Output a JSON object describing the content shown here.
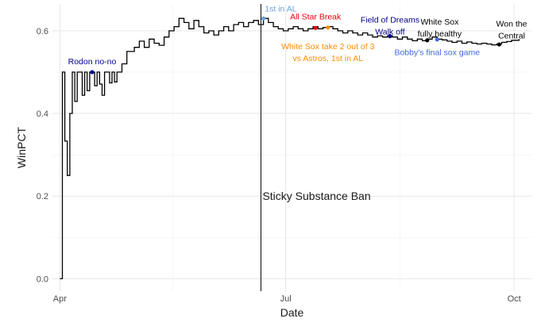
{
  "chart_data": {
    "type": "line",
    "xlabel": "Date",
    "ylabel": "WinPCT",
    "x_ticks": [
      "Apr",
      "Jul",
      "Oct"
    ],
    "y_ticks": [
      "0.0",
      "0.2",
      "0.4",
      "0.6"
    ],
    "xlim": [
      "2021-03-29",
      "2021-10-08"
    ],
    "ylim": [
      -0.03,
      0.665
    ],
    "grid": true,
    "series": [
      {
        "color": "#000000",
        "points": [
          [
            "2021-04-01",
            0.0
          ],
          [
            "2021-04-02",
            0.5
          ],
          [
            "2021-04-03",
            0.333
          ],
          [
            "2021-04-04",
            0.25
          ],
          [
            "2021-04-05",
            0.4
          ],
          [
            "2021-04-06",
            0.5
          ],
          [
            "2021-04-07",
            0.429
          ],
          [
            "2021-04-08",
            0.5
          ],
          [
            "2021-04-09",
            0.5
          ],
          [
            "2021-04-10",
            0.444
          ],
          [
            "2021-04-11",
            0.5
          ],
          [
            "2021-04-12",
            0.455
          ],
          [
            "2021-04-13",
            0.5
          ],
          [
            "2021-04-14",
            0.5
          ],
          [
            "2021-04-15",
            0.467
          ],
          [
            "2021-04-16",
            0.5
          ],
          [
            "2021-04-17",
            0.471
          ],
          [
            "2021-04-18",
            0.444
          ],
          [
            "2021-04-19",
            0.5
          ],
          [
            "2021-04-21",
            0.474
          ],
          [
            "2021-04-22",
            0.5
          ],
          [
            "2021-04-23",
            0.476
          ],
          [
            "2021-04-24",
            0.5
          ],
          [
            "2021-04-26",
            0.52
          ],
          [
            "2021-04-28",
            0.55
          ],
          [
            "2021-05-01",
            0.56
          ],
          [
            "2021-05-03",
            0.575
          ],
          [
            "2021-05-05",
            0.56
          ],
          [
            "2021-05-07",
            0.58
          ],
          [
            "2021-05-09",
            0.57
          ],
          [
            "2021-05-11",
            0.565
          ],
          [
            "2021-05-13",
            0.585
          ],
          [
            "2021-05-15",
            0.6
          ],
          [
            "2021-05-17",
            0.61
          ],
          [
            "2021-05-19",
            0.63
          ],
          [
            "2021-05-21",
            0.62
          ],
          [
            "2021-05-23",
            0.605
          ],
          [
            "2021-05-25",
            0.625
          ],
          [
            "2021-05-27",
            0.61
          ],
          [
            "2021-05-29",
            0.595
          ],
          [
            "2021-05-31",
            0.6
          ],
          [
            "2021-06-02",
            0.59
          ],
          [
            "2021-06-04",
            0.6
          ],
          [
            "2021-06-06",
            0.61
          ],
          [
            "2021-06-08",
            0.6
          ],
          [
            "2021-06-10",
            0.615
          ],
          [
            "2021-06-12",
            0.62
          ],
          [
            "2021-06-14",
            0.61
          ],
          [
            "2021-06-16",
            0.62
          ],
          [
            "2021-06-18",
            0.625
          ],
          [
            "2021-06-20",
            0.615
          ],
          [
            "2021-06-22",
            0.63
          ],
          [
            "2021-06-24",
            0.62
          ],
          [
            "2021-06-26",
            0.61
          ],
          [
            "2021-06-28",
            0.605
          ],
          [
            "2021-06-30",
            0.6
          ],
          [
            "2021-07-02",
            0.605
          ],
          [
            "2021-07-04",
            0.61
          ],
          [
            "2021-07-06",
            0.605
          ],
          [
            "2021-07-08",
            0.6
          ],
          [
            "2021-07-10",
            0.605
          ],
          [
            "2021-07-12",
            0.61
          ],
          [
            "2021-07-14",
            0.605
          ],
          [
            "2021-07-16",
            0.608
          ],
          [
            "2021-07-18",
            0.61
          ],
          [
            "2021-07-20",
            0.605
          ],
          [
            "2021-07-22",
            0.6
          ],
          [
            "2021-07-24",
            0.595
          ],
          [
            "2021-07-26",
            0.6
          ],
          [
            "2021-07-28",
            0.595
          ],
          [
            "2021-07-30",
            0.59
          ],
          [
            "2021-08-01",
            0.595
          ],
          [
            "2021-08-03",
            0.59
          ],
          [
            "2021-08-05",
            0.585
          ],
          [
            "2021-08-07",
            0.588
          ],
          [
            "2021-08-09",
            0.585
          ],
          [
            "2021-08-11",
            0.588
          ],
          [
            "2021-08-13",
            0.585
          ],
          [
            "2021-08-15",
            0.58
          ],
          [
            "2021-08-17",
            0.585
          ],
          [
            "2021-08-19",
            0.58
          ],
          [
            "2021-08-21",
            0.576
          ],
          [
            "2021-08-23",
            0.58
          ],
          [
            "2021-08-25",
            0.576
          ],
          [
            "2021-08-27",
            0.58
          ],
          [
            "2021-08-29",
            0.585
          ],
          [
            "2021-08-31",
            0.58
          ],
          [
            "2021-09-02",
            0.578
          ],
          [
            "2021-09-04",
            0.575
          ],
          [
            "2021-09-06",
            0.572
          ],
          [
            "2021-09-08",
            0.575
          ],
          [
            "2021-09-10",
            0.57
          ],
          [
            "2021-09-12",
            0.573
          ],
          [
            "2021-09-14",
            0.57
          ],
          [
            "2021-09-16",
            0.568
          ],
          [
            "2021-09-18",
            0.57
          ],
          [
            "2021-09-20",
            0.568
          ],
          [
            "2021-09-22",
            0.566
          ],
          [
            "2021-09-24",
            0.568
          ],
          [
            "2021-09-26",
            0.572
          ],
          [
            "2021-09-28",
            0.574
          ],
          [
            "2021-09-30",
            0.577
          ],
          [
            "2021-10-03",
            0.58
          ]
        ]
      }
    ],
    "vline": {
      "date": "2021-06-21",
      "label": "Sticky Substance Ban",
      "label_y": 0.2
    },
    "annotations": [
      {
        "date": "2021-04-14",
        "value": 0.5,
        "point_color": "#00008B",
        "text_lines": [
          "Rodon no-no"
        ],
        "text_color": "#00008B",
        "text_date": "2021-04-14",
        "text_y": 0.519
      },
      {
        "date": "2021-06-22",
        "value": 0.63,
        "point_color": "#6A9FD8",
        "text_lines": [
          "1st in AL"
        ],
        "text_color": "#6A9FD8",
        "text_date": "2021-06-29",
        "text_y": 0.647
      },
      {
        "date": "2021-07-13",
        "value": 0.607,
        "point_color": "#E8000B",
        "text_lines": [
          "All Star Break"
        ],
        "text_color": "#E8000B",
        "text_date": "2021-07-13",
        "text_y": 0.628
      },
      {
        "date": "2021-07-18",
        "value": 0.608,
        "point_color": "#FF8C00",
        "text_lines": [
          "White Sox take 2 out of 3",
          "vs Astros, 1st in AL"
        ],
        "text_color": "#FF8C00",
        "text_date": "2021-07-18",
        "text_y": 0.556
      },
      {
        "date": "2021-08-12",
        "value": 0.587,
        "point_color": "#00008B",
        "text_lines": [
          "Field of Dreams",
          "Walk off"
        ],
        "text_color": "#00008B",
        "text_date": "2021-08-12",
        "text_y": 0.62
      },
      {
        "date": "2021-08-27",
        "value": 0.577,
        "point_color": "#000000",
        "text_lines": [
          "White Sox",
          "fully healthy"
        ],
        "text_color": "#000000",
        "text_date": "2021-09-01",
        "text_y": 0.615
      },
      {
        "date": "2021-08-31",
        "value": 0.579,
        "point_color": "#4169E1",
        "text_lines": [
          "Bobby's final sox game"
        ],
        "text_color": "#4169E1",
        "text_date": "2021-08-31",
        "text_y": 0.541
      },
      {
        "date": "2021-09-25",
        "value": 0.567,
        "point_color": "#000000",
        "text_lines": [
          "Won the",
          "Central"
        ],
        "text_color": "#000000",
        "text_date": "2021-09-30",
        "text_y": 0.61
      }
    ]
  }
}
